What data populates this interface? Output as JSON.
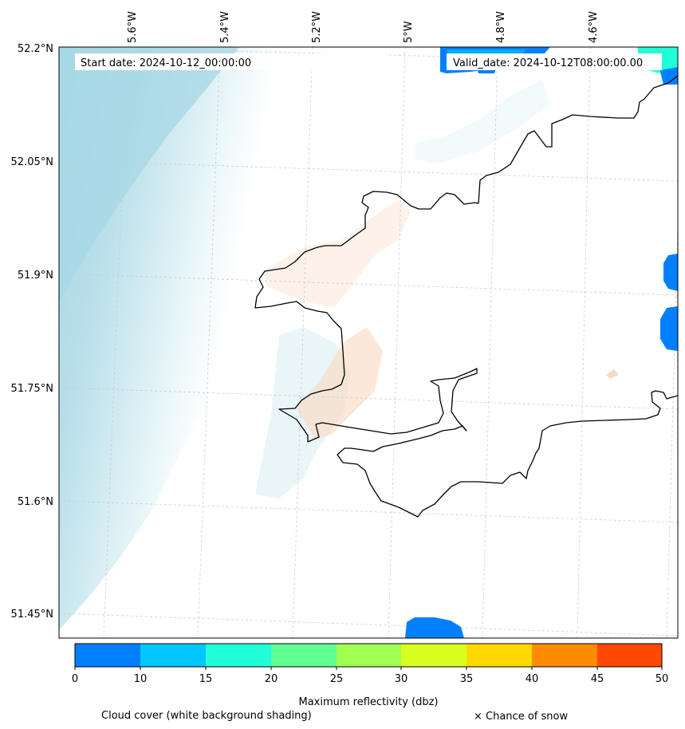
{
  "header": {
    "start_date": "Start date: 2024-10-12_00:00:00",
    "valid_date": "Valid_date: 2024-10-12T08:00:00.00"
  },
  "axes": {
    "longitude_labels": [
      "5.6°W",
      "5.4°W",
      "5.2°W",
      "5°W",
      "4.8°W",
      "4.6°W"
    ],
    "latitude_labels": [
      "52.2°N",
      "52.05°N",
      "51.9°N",
      "51.75°N",
      "51.6°N",
      "51.45°N"
    ]
  },
  "colorbar": {
    "title": "Maximum reflectivity (dbz)",
    "ticks": [
      "0",
      "10",
      "15",
      "20",
      "25",
      "30",
      "35",
      "40",
      "45",
      "50"
    ],
    "colors": [
      "#0080ff",
      "#00c8ff",
      "#20ffd8",
      "#60ff90",
      "#a0ff50",
      "#d8ff20",
      "#ffd800",
      "#ff8c00",
      "#ff4800"
    ]
  },
  "legend": {
    "cloud_cover": "Cloud cover (white background shading)",
    "snow": "× Chance of snow"
  },
  "colors": {
    "coastline": "#000000",
    "cloud_dark": "#a8d8e6",
    "grid": "#cccccc"
  }
}
